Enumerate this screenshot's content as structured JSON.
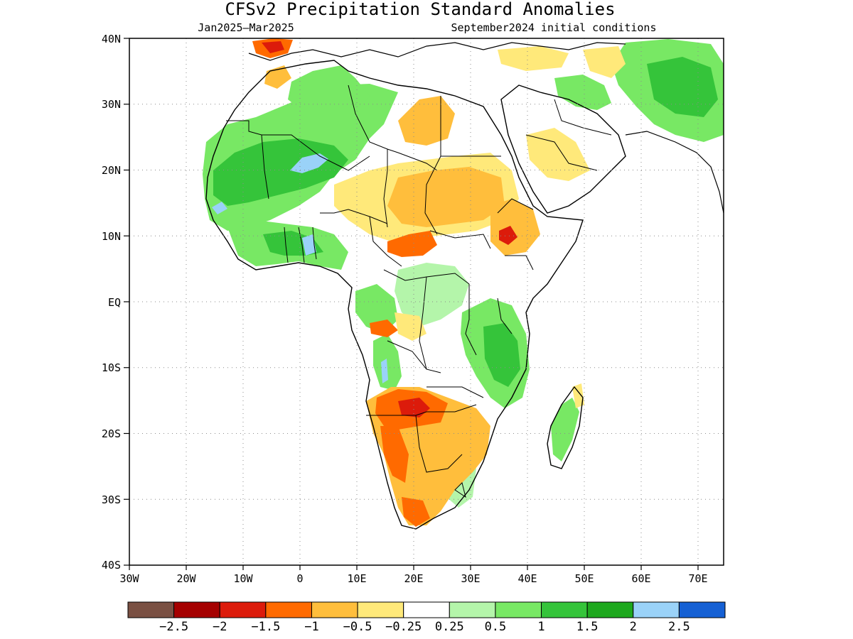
{
  "title": "CFSv2 Precipitation Standard Anomalies",
  "subtitle_left": "Jan2025–Mar2025",
  "subtitle_right": "September2024 initial conditions",
  "lat_labels": [
    "40N",
    "30N",
    "20N",
    "10N",
    "EQ",
    "10S",
    "20S",
    "30S",
    "40S"
  ],
  "lon_labels": [
    "30W",
    "20W",
    "10W",
    "0",
    "10E",
    "20E",
    "30E",
    "40E",
    "50E",
    "60E",
    "70E"
  ],
  "colorbar": {
    "colors": [
      "#7a5043",
      "#a50000",
      "#dc1b0b",
      "#ff6a00",
      "#ffbe3c",
      "#ffe97a",
      "#ffffff",
      "#b4f5aa",
      "#78e864",
      "#35c43a",
      "#1ea81e",
      "#9ad2f8",
      "#1560d4"
    ],
    "labels": [
      "−2.5",
      "−2",
      "−1.5",
      "−1",
      "−0.5",
      "−0.25",
      "0.25",
      "0.5",
      "1",
      "1.5",
      "2",
      "2.5"
    ]
  },
  "palette": {
    "wet_light": "#b4f5aa",
    "wet_mid": "#78e864",
    "wet_strong": "#35c43a",
    "wet_vstrong": "#1ea81e",
    "wet_extreme": "#9ad2f8",
    "dry_light": "#ffe97a",
    "dry_mid": "#ffbe3c",
    "dry_strong": "#ff6a00",
    "dry_vstrong": "#dc1b0b",
    "dry_extreme": "#a50000",
    "neutral": "#ffffff",
    "coast": "#000000"
  }
}
